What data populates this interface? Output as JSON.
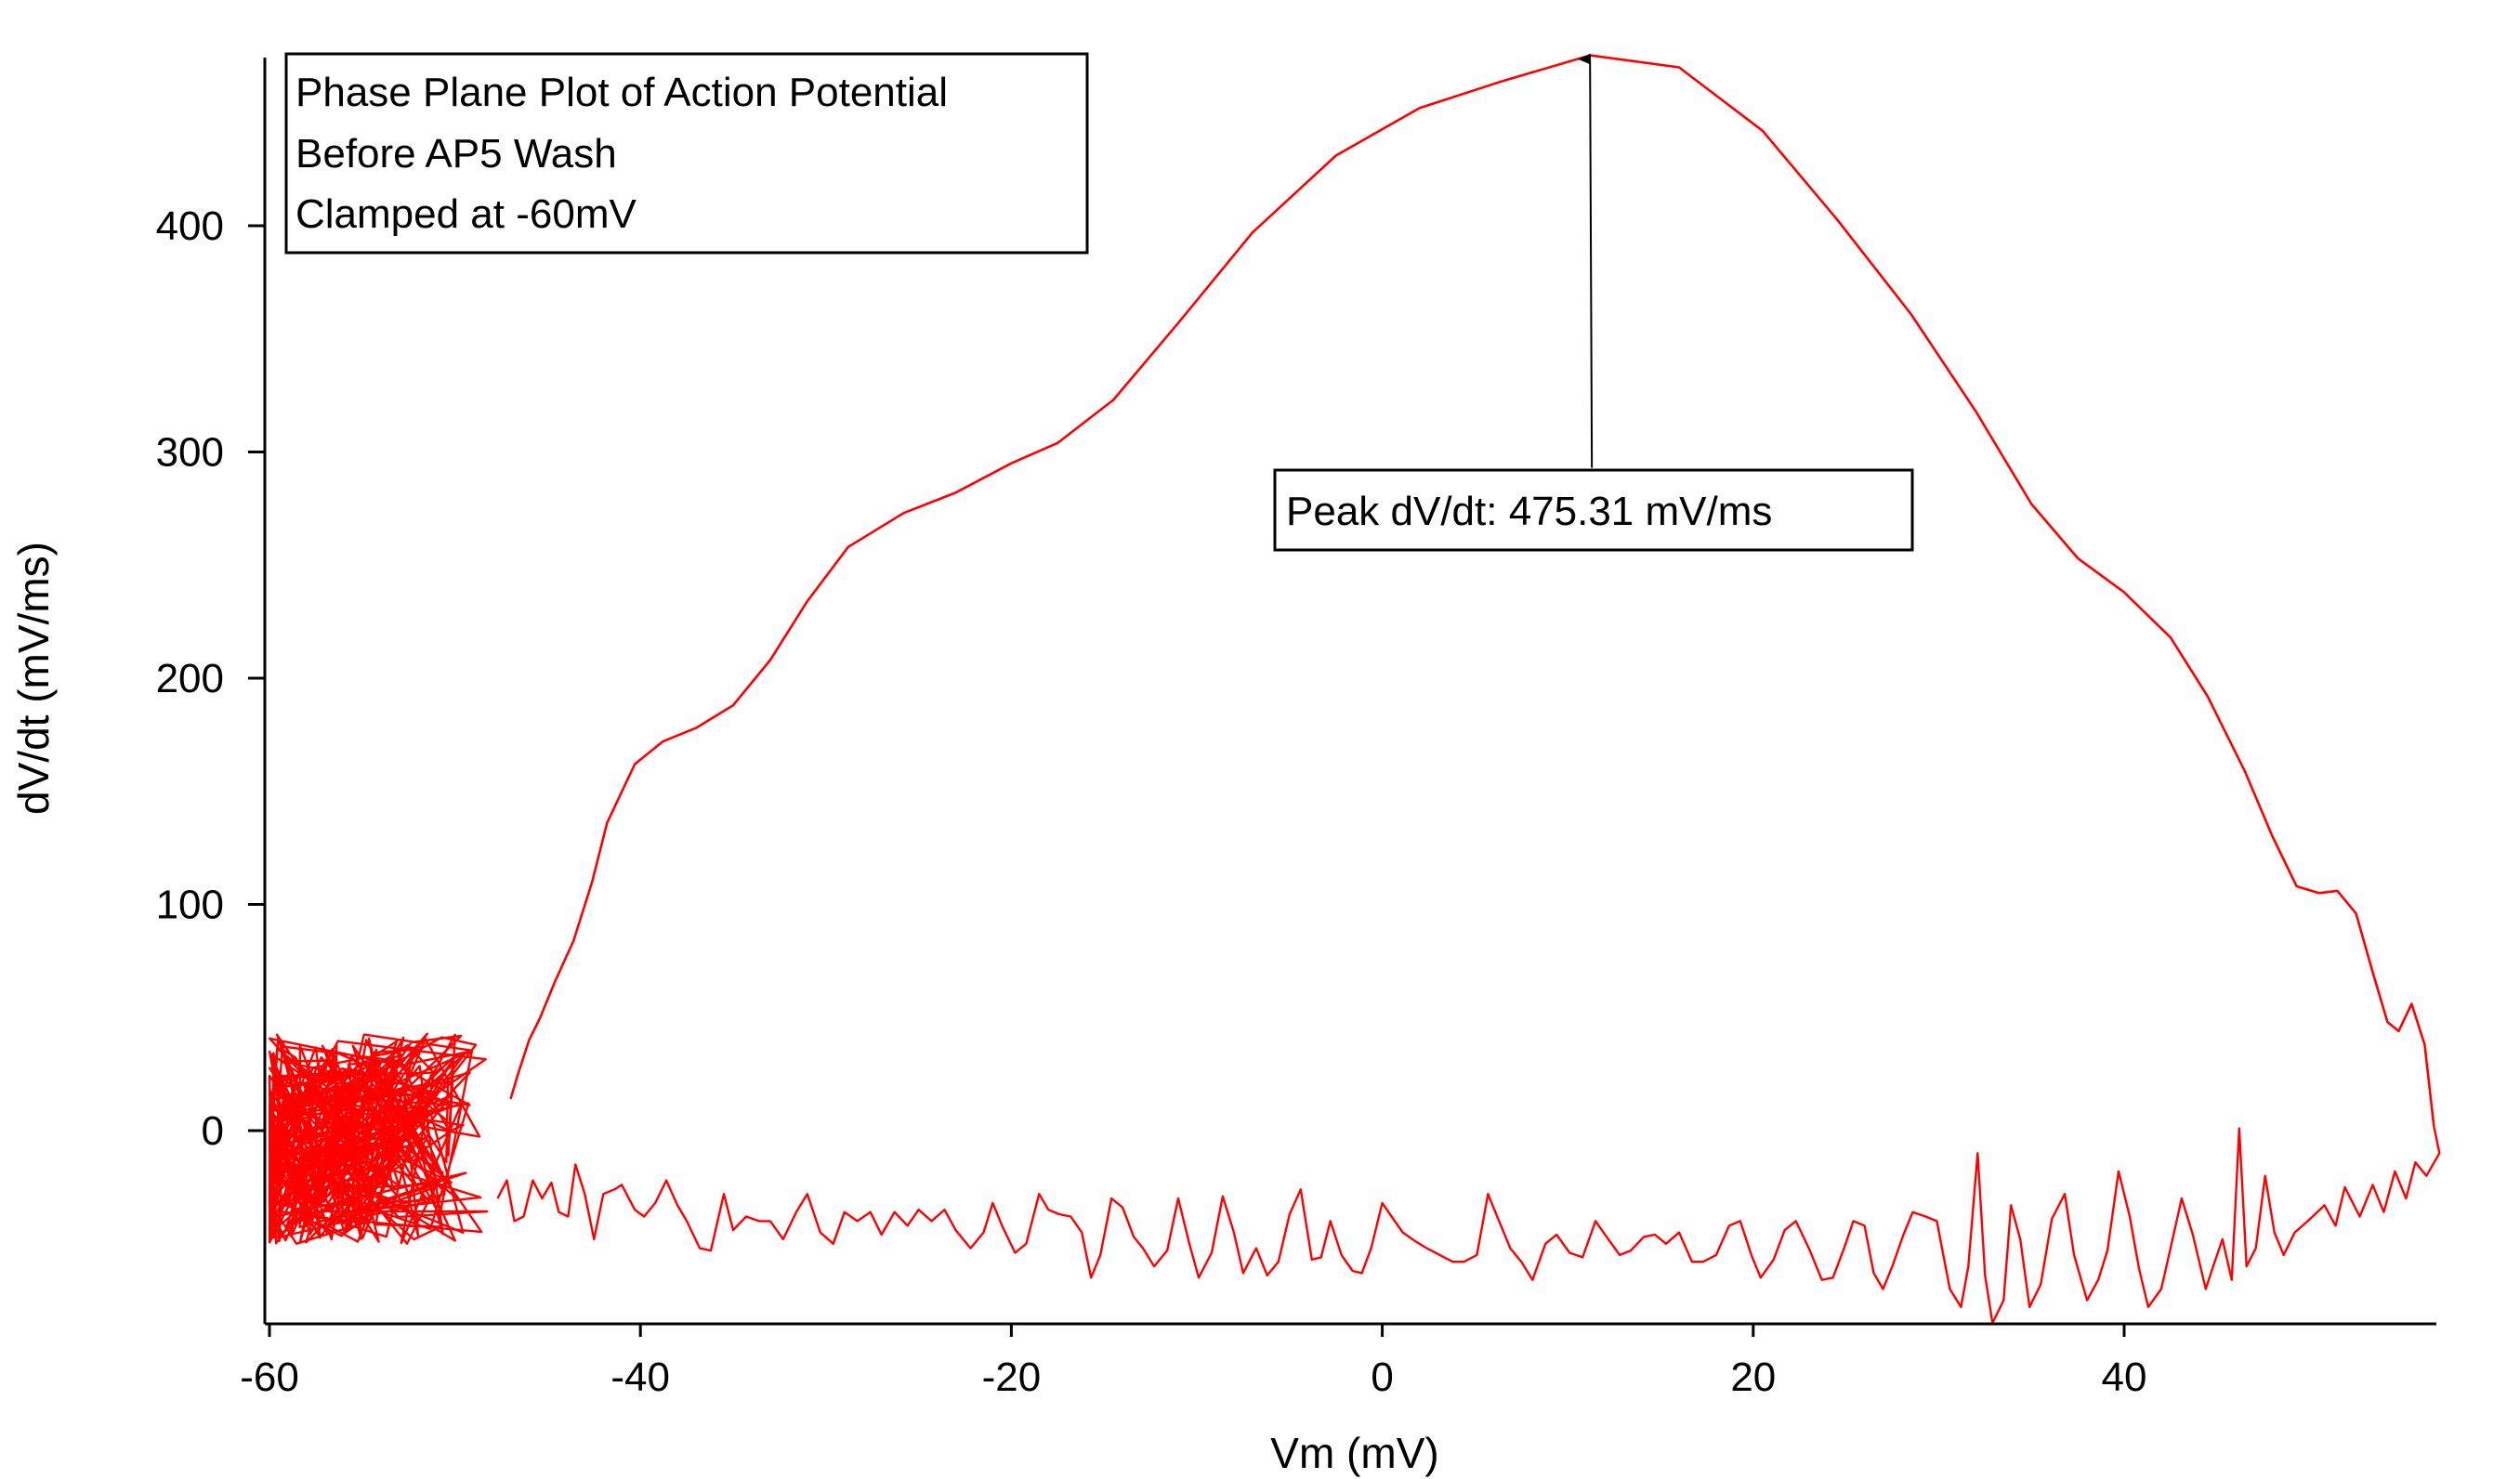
{
  "chart_data": {
    "type": "line",
    "title_box": {
      "lines": [
        "Phase Plane Plot of Action Potential",
        "Before AP5 Wash",
        "Clamped at -60mV"
      ]
    },
    "xlabel": "Vm (mV)",
    "ylabel": "dV/dt (mV/ms)",
    "xlim": [
      -60.2,
      57
    ],
    "ylim": [
      -87,
      475
    ],
    "x_ticks": [
      -60,
      -40,
      -20,
      0,
      20,
      40
    ],
    "x_tick_labels": [
      "-60",
      "-40",
      "-20",
      "0",
      "20",
      "40"
    ],
    "y_ticks": [
      0,
      100,
      200,
      300,
      400
    ],
    "y_tick_labels": [
      "0",
      "100",
      "200",
      "300",
      "400"
    ],
    "grid": false,
    "series": [
      {
        "color": "#ff0000",
        "upstroke": [
          [
            -47,
            14
          ],
          [
            -46.6,
            25
          ],
          [
            -46,
            40
          ],
          [
            -45.4,
            50
          ],
          [
            -44.6,
            66
          ],
          [
            -43.6,
            84
          ],
          [
            -42.6,
            110
          ],
          [
            -41.8,
            136
          ],
          [
            -40.3,
            162
          ],
          [
            -38.8,
            172
          ],
          [
            -37,
            178
          ],
          [
            -35,
            188
          ],
          [
            -33,
            208
          ],
          [
            -31,
            234
          ],
          [
            -28.8,
            258
          ],
          [
            -25.8,
            273
          ],
          [
            -23,
            282
          ],
          [
            -20,
            295
          ],
          [
            -17.5,
            304
          ],
          [
            -14.5,
            323
          ],
          [
            -11,
            357
          ],
          [
            -7,
            397
          ],
          [
            -2.5,
            431
          ],
          [
            2,
            452
          ],
          [
            6.5,
            464
          ],
          [
            11.2,
            475.31
          ],
          [
            16,
            470
          ],
          [
            20.5,
            442
          ],
          [
            24.5,
            403
          ],
          [
            28.5,
            361
          ],
          [
            32,
            318
          ],
          [
            35,
            277
          ],
          [
            37.5,
            253
          ],
          [
            40,
            238
          ],
          [
            42.5,
            218
          ],
          [
            44.5,
            192
          ],
          [
            46.5,
            159
          ],
          [
            48,
            130
          ],
          [
            49.3,
            108
          ],
          [
            50.5,
            105
          ],
          [
            51.5,
            106
          ],
          [
            52.5,
            96
          ],
          [
            53.4,
            70
          ],
          [
            54.2,
            48
          ],
          [
            54.8,
            44
          ],
          [
            55.5,
            56
          ],
          [
            56.2,
            38
          ],
          [
            56.7,
            2
          ]
        ],
        "downstroke": [
          [
            56.7,
            2
          ],
          [
            57,
            -10
          ],
          [
            56.3,
            -20
          ],
          [
            55.7,
            -14
          ],
          [
            55.2,
            -30
          ],
          [
            54.6,
            -18
          ],
          [
            54,
            -36
          ],
          [
            53.4,
            -24
          ],
          [
            52.7,
            -38
          ],
          [
            51.9,
            -25
          ],
          [
            51.4,
            -42
          ],
          [
            50.8,
            -33
          ],
          [
            49.9,
            -40
          ],
          [
            49.2,
            -45
          ],
          [
            48.6,
            -55
          ],
          [
            48.1,
            -45
          ],
          [
            47.6,
            -20
          ],
          [
            47.1,
            -52
          ],
          [
            46.6,
            -60
          ],
          [
            46.2,
            1
          ],
          [
            45.8,
            -66
          ],
          [
            45.3,
            -48
          ],
          [
            44.8,
            -60
          ],
          [
            44.4,
            -70
          ],
          [
            43.7,
            -46
          ],
          [
            43.1,
            -30
          ],
          [
            42.5,
            -52
          ],
          [
            42,
            -70
          ],
          [
            41.3,
            -78
          ],
          [
            40.8,
            -61
          ],
          [
            40.3,
            -38
          ],
          [
            39.7,
            -18
          ],
          [
            39.1,
            -53
          ],
          [
            38.6,
            -66
          ],
          [
            38,
            -75
          ],
          [
            37.3,
            -55
          ],
          [
            36.8,
            -28
          ],
          [
            36.1,
            -39
          ],
          [
            35.5,
            -68
          ],
          [
            34.9,
            -78
          ],
          [
            34.4,
            -48
          ],
          [
            33.9,
            -33
          ],
          [
            33.5,
            -75
          ],
          [
            32.9,
            -85
          ],
          [
            32.5,
            -64
          ],
          [
            32.1,
            -10
          ],
          [
            31.6,
            -60
          ],
          [
            31.2,
            -78
          ],
          [
            30.6,
            -70
          ],
          [
            29.9,
            -40
          ],
          [
            29.3,
            -38
          ],
          [
            28.6,
            -36
          ],
          [
            28.1,
            -46
          ],
          [
            27.5,
            -60
          ],
          [
            27,
            -70
          ],
          [
            26.5,
            -63
          ],
          [
            26,
            -42
          ],
          [
            25.4,
            -40
          ],
          [
            24.9,
            -52
          ],
          [
            24.3,
            -65
          ],
          [
            23.7,
            -66
          ],
          [
            23,
            -52
          ],
          [
            22.3,
            -40
          ],
          [
            21.7,
            -44
          ],
          [
            21.1,
            -57
          ],
          [
            20.4,
            -65
          ],
          [
            19.9,
            -55
          ],
          [
            19.3,
            -40
          ],
          [
            18.7,
            -42
          ],
          [
            18,
            -55
          ],
          [
            17.3,
            -58
          ],
          [
            16.7,
            -58
          ],
          [
            16,
            -45
          ],
          [
            15.3,
            -50
          ],
          [
            14.7,
            -46
          ],
          [
            14.1,
            -47
          ],
          [
            13.4,
            -53
          ],
          [
            12.8,
            -55
          ],
          [
            12.1,
            -47
          ],
          [
            11.5,
            -40
          ],
          [
            10.8,
            -56
          ],
          [
            10.1,
            -54
          ],
          [
            9.4,
            -46
          ],
          [
            8.8,
            -50
          ],
          [
            8.1,
            -66
          ],
          [
            7.5,
            -58
          ],
          [
            6.9,
            -52
          ],
          [
            6.3,
            -40
          ],
          [
            5.7,
            -28
          ],
          [
            5.1,
            -55
          ],
          [
            4.4,
            -58
          ],
          [
            3.8,
            -58
          ],
          [
            3.1,
            -55
          ],
          [
            2.4,
            -52
          ],
          [
            1.8,
            -49
          ],
          [
            1.1,
            -45
          ],
          [
            0.5,
            -38
          ],
          [
            0,
            -32
          ],
          [
            -0.6,
            -52
          ],
          [
            -1.1,
            -63
          ],
          [
            -1.6,
            -62
          ],
          [
            -2.2,
            -55
          ],
          [
            -2.8,
            -40
          ],
          [
            -3.3,
            -56
          ],
          [
            -3.8,
            -57
          ],
          [
            -4.4,
            -26
          ],
          [
            -5,
            -37
          ],
          [
            -5.6,
            -58
          ],
          [
            -6.2,
            -64
          ],
          [
            -6.8,
            -52
          ],
          [
            -7.5,
            -63
          ],
          [
            -8,
            -45
          ],
          [
            -8.6,
            -29
          ],
          [
            -9.2,
            -54
          ],
          [
            -9.9,
            -65
          ],
          [
            -10.4,
            -50
          ],
          [
            -11,
            -30
          ],
          [
            -11.6,
            -53
          ],
          [
            -12.3,
            -60
          ],
          [
            -12.9,
            -52
          ],
          [
            -13.4,
            -47
          ],
          [
            -14,
            -34
          ],
          [
            -14.6,
            -30
          ],
          [
            -15.2,
            -55
          ],
          [
            -15.7,
            -65
          ],
          [
            -16.2,
            -45
          ],
          [
            -16.8,
            -38
          ],
          [
            -17.4,
            -37
          ],
          [
            -18,
            -35
          ],
          [
            -18.5,
            -28
          ],
          [
            -19.2,
            -50
          ],
          [
            -19.8,
            -54
          ],
          [
            -20.5,
            -42
          ],
          [
            -21,
            -32
          ],
          [
            -21.5,
            -45
          ],
          [
            -22.2,
            -52
          ],
          [
            -23,
            -44
          ],
          [
            -23.6,
            -35
          ],
          [
            -24.3,
            -40
          ],
          [
            -25,
            -35
          ],
          [
            -25.6,
            -42
          ],
          [
            -26.3,
            -36
          ],
          [
            -27,
            -46
          ],
          [
            -27.6,
            -36
          ],
          [
            -28.3,
            -40
          ],
          [
            -29,
            -36
          ],
          [
            -29.6,
            -50
          ],
          [
            -30.3,
            -45
          ],
          [
            -31,
            -28
          ],
          [
            -31.6,
            -36
          ],
          [
            -32.3,
            -48
          ],
          [
            -33,
            -40
          ],
          [
            -33.6,
            -40
          ],
          [
            -34.3,
            -38
          ],
          [
            -35,
            -44
          ],
          [
            -35.5,
            -28
          ],
          [
            -36.2,
            -53
          ],
          [
            -36.8,
            -52
          ],
          [
            -37.5,
            -40
          ],
          [
            -38,
            -33
          ],
          [
            -38.6,
            -22
          ],
          [
            -39.2,
            -32
          ],
          [
            -39.8,
            -38
          ],
          [
            -40.3,
            -35
          ],
          [
            -41,
            -24
          ],
          [
            -41.4,
            -26
          ],
          [
            -42,
            -28
          ],
          [
            -42.5,
            -48
          ],
          [
            -43,
            -28
          ],
          [
            -43.5,
            -15
          ],
          [
            -43.9,
            -38
          ],
          [
            -44.4,
            -36
          ],
          [
            -44.8,
            -23
          ],
          [
            -45.3,
            -30
          ],
          [
            -45.8,
            -22
          ],
          [
            -46.3,
            -38
          ],
          [
            -46.8,
            -40
          ],
          [
            -47.2,
            -22
          ],
          [
            -47.7,
            -30
          ]
        ],
        "noise_cluster": {
          "x_range": [
            -60,
            -48
          ],
          "y_range": [
            -50,
            43
          ]
        }
      }
    ],
    "annotation": {
      "text": "Peak dV/dt: 475.31 mV/ms",
      "arrow_to": [
        11.2,
        475.31
      ],
      "arrow_from": [
        11.3,
        293
      ]
    }
  }
}
